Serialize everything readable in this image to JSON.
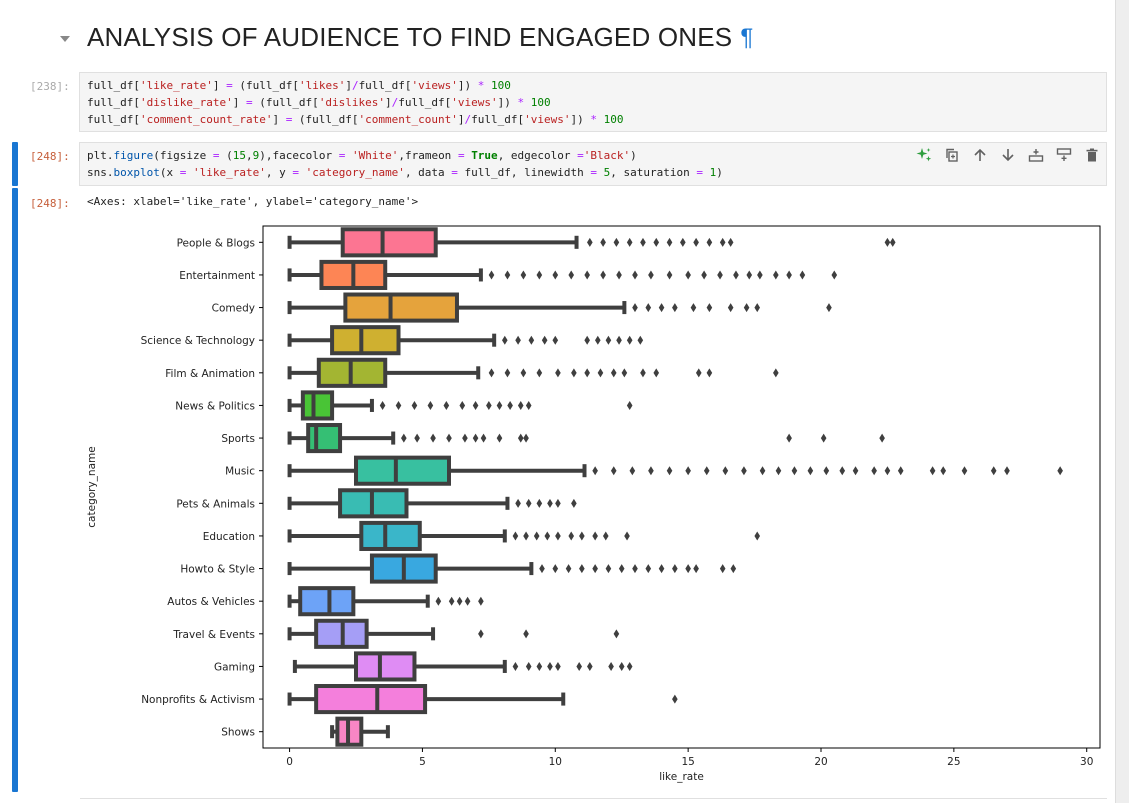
{
  "heading": {
    "title": "ANALYSIS OF AUDIENCE TO FIND ENGAGED ONES",
    "anchor": "¶"
  },
  "cells": [
    {
      "prompt": "[238]:",
      "lines": [
        [
          [
            "full_df[",
            "t"
          ],
          [
            "'like_rate'",
            "s"
          ],
          [
            "] ",
            "t"
          ],
          [
            "=",
            "o"
          ],
          [
            " (full_df[",
            "t"
          ],
          [
            "'likes'",
            "s"
          ],
          [
            "]",
            "t"
          ],
          [
            "/",
            "o"
          ],
          [
            "full_df[",
            "t"
          ],
          [
            "'views'",
            "s"
          ],
          [
            "]) ",
            "t"
          ],
          [
            "*",
            "o"
          ],
          [
            " ",
            "t"
          ],
          [
            "100",
            "n"
          ]
        ],
        [
          [
            "full_df[",
            "t"
          ],
          [
            "'dislike_rate'",
            "s"
          ],
          [
            "] ",
            "t"
          ],
          [
            "=",
            "o"
          ],
          [
            " (full_df[",
            "t"
          ],
          [
            "'dislikes'",
            "s"
          ],
          [
            "]",
            "t"
          ],
          [
            "/",
            "o"
          ],
          [
            "full_df[",
            "t"
          ],
          [
            "'views'",
            "s"
          ],
          [
            "]) ",
            "t"
          ],
          [
            "*",
            "o"
          ],
          [
            " ",
            "t"
          ],
          [
            "100",
            "n"
          ]
        ],
        [
          [
            "full_df[",
            "t"
          ],
          [
            "'comment_count_rate'",
            "s"
          ],
          [
            "] ",
            "t"
          ],
          [
            "=",
            "o"
          ],
          [
            " (full_df[",
            "t"
          ],
          [
            "'comment_count'",
            "s"
          ],
          [
            "]",
            "t"
          ],
          [
            "/",
            "o"
          ],
          [
            "full_df[",
            "t"
          ],
          [
            "'views'",
            "s"
          ],
          [
            "]) ",
            "t"
          ],
          [
            "*",
            "o"
          ],
          [
            " ",
            "t"
          ],
          [
            "100",
            "n"
          ]
        ]
      ]
    },
    {
      "prompt": "[248]:",
      "lines": [
        [
          [
            "plt.",
            "t"
          ],
          [
            "figure",
            "f"
          ],
          [
            "(figsize ",
            "t"
          ],
          [
            "=",
            "o"
          ],
          [
            " (",
            "t"
          ],
          [
            "15",
            "n"
          ],
          [
            ",",
            "t"
          ],
          [
            "9",
            "n"
          ],
          [
            "),facecolor ",
            "t"
          ],
          [
            "=",
            "o"
          ],
          [
            " ",
            "t"
          ],
          [
            "'White'",
            "s"
          ],
          [
            ",frameon ",
            "t"
          ],
          [
            "=",
            "o"
          ],
          [
            " ",
            "t"
          ],
          [
            "True",
            "k"
          ],
          [
            ", edgecolor ",
            "t"
          ],
          [
            "=",
            "o"
          ],
          [
            "'Black'",
            "s"
          ],
          [
            ")",
            "t"
          ]
        ],
        [
          [
            "sns.",
            "t"
          ],
          [
            "boxplot",
            "f"
          ],
          [
            "(x ",
            "t"
          ],
          [
            "=",
            "o"
          ],
          [
            " ",
            "t"
          ],
          [
            "'like_rate'",
            "s"
          ],
          [
            ", y ",
            "t"
          ],
          [
            "=",
            "o"
          ],
          [
            " ",
            "t"
          ],
          [
            "'category_name'",
            "s"
          ],
          [
            ", data ",
            "t"
          ],
          [
            "=",
            "o"
          ],
          [
            " full_df, linewidth ",
            "t"
          ],
          [
            "=",
            "o"
          ],
          [
            " ",
            "t"
          ],
          [
            "5",
            "n"
          ],
          [
            ", saturation ",
            "t"
          ],
          [
            "=",
            "o"
          ],
          [
            " ",
            "t"
          ],
          [
            "1",
            "n"
          ],
          [
            ")",
            "t"
          ]
        ]
      ]
    }
  ],
  "output": {
    "prompt": "[248]:",
    "text": "<Axes: xlabel='like_rate', ylabel='category_name'>"
  },
  "toolbar": [
    {
      "name": "sparkle-ai-icon",
      "color": "#2e9e3e"
    },
    {
      "name": "duplicate-icon",
      "color": "#616161"
    },
    {
      "name": "move-up-icon",
      "color": "#616161"
    },
    {
      "name": "move-down-icon",
      "color": "#616161"
    },
    {
      "name": "insert-above-icon",
      "color": "#616161"
    },
    {
      "name": "insert-below-icon",
      "color": "#616161"
    },
    {
      "name": "delete-icon",
      "color": "#616161"
    }
  ],
  "chart_data": {
    "type": "boxplot",
    "orientation": "horizontal",
    "xlabel": "like_rate",
    "ylabel": "category_name",
    "xlim": [
      -1,
      30.5
    ],
    "xticks": [
      0,
      5,
      10,
      15,
      20,
      25,
      30
    ],
    "box_edge_color": "#3f3f3f",
    "categories": [
      "People & Blogs",
      "Entertainment",
      "Comedy",
      "Science & Technology",
      "Film & Animation",
      "News & Politics",
      "Sports",
      "Music",
      "Pets & Animals",
      "Education",
      "Howto & Style",
      "Autos & Vehicles",
      "Travel & Events",
      "Gaming",
      "Nonprofits & Activism",
      "Shows"
    ],
    "series": [
      {
        "q1": 2.0,
        "median": 3.5,
        "q3": 5.5,
        "whisker_low": 0.0,
        "whisker_high": 10.8,
        "outliers": [
          11.3,
          11.8,
          12.3,
          12.8,
          13.3,
          13.8,
          14.3,
          14.8,
          15.3,
          15.8,
          16.3,
          16.6,
          22.5,
          22.7
        ],
        "color": "#fc7592"
      },
      {
        "q1": 1.2,
        "median": 2.4,
        "q3": 3.6,
        "whisker_low": 0.0,
        "whisker_high": 7.2,
        "outliers": [
          7.6,
          8.2,
          8.8,
          9.4,
          10.0,
          10.6,
          11.2,
          11.8,
          12.4,
          13.0,
          13.6,
          14.3,
          15.0,
          15.6,
          16.2,
          16.8,
          17.3,
          17.7,
          18.3,
          18.8,
          19.3,
          20.5
        ],
        "color": "#fd8555"
      },
      {
        "q1": 2.1,
        "median": 3.8,
        "q3": 6.3,
        "whisker_low": 0.0,
        "whisker_high": 12.6,
        "outliers": [
          13.0,
          13.5,
          14.0,
          14.5,
          15.2,
          15.8,
          16.6,
          17.2,
          17.6,
          20.3
        ],
        "color": "#e5a33c"
      },
      {
        "q1": 1.6,
        "median": 2.7,
        "q3": 4.1,
        "whisker_low": 0.0,
        "whisker_high": 7.7,
        "outliers": [
          8.1,
          8.6,
          9.1,
          9.6,
          10.0,
          11.2,
          11.6,
          12.0,
          12.4,
          12.8,
          13.2
        ],
        "color": "#cfb030"
      },
      {
        "q1": 1.1,
        "median": 2.3,
        "q3": 3.6,
        "whisker_low": 0.0,
        "whisker_high": 7.1,
        "outliers": [
          7.6,
          8.2,
          8.8,
          9.4,
          10.1,
          10.7,
          11.2,
          11.7,
          12.2,
          12.6,
          13.3,
          13.8,
          15.4,
          15.8,
          18.3
        ],
        "color": "#a3b532"
      },
      {
        "q1": 0.5,
        "median": 0.9,
        "q3": 1.6,
        "whisker_low": 0.0,
        "whisker_high": 3.1,
        "outliers": [
          3.5,
          4.1,
          4.7,
          5.3,
          5.9,
          6.5,
          7.0,
          7.5,
          7.9,
          8.3,
          8.7,
          9.0,
          12.8
        ],
        "color": "#49c436"
      },
      {
        "q1": 0.7,
        "median": 1.0,
        "q3": 1.9,
        "whisker_low": 0.0,
        "whisker_high": 3.9,
        "outliers": [
          4.3,
          4.8,
          5.4,
          6.0,
          6.6,
          7.0,
          7.3,
          7.9,
          8.7,
          8.9,
          18.8,
          20.1,
          22.3
        ],
        "color": "#35bf74"
      },
      {
        "q1": 2.5,
        "median": 4.0,
        "q3": 6.0,
        "whisker_low": 0.0,
        "whisker_high": 11.1,
        "outliers": [
          11.5,
          12.2,
          12.9,
          13.6,
          14.3,
          15.0,
          15.7,
          16.4,
          17.1,
          17.8,
          18.4,
          19.0,
          19.6,
          20.2,
          20.8,
          21.3,
          22.0,
          22.5,
          23.0,
          24.2,
          24.6,
          25.4,
          26.5,
          27.0,
          29.0
        ],
        "color": "#38c0a0"
      },
      {
        "q1": 1.9,
        "median": 3.1,
        "q3": 4.4,
        "whisker_low": 0.0,
        "whisker_high": 8.2,
        "outliers": [
          8.6,
          9.0,
          9.4,
          9.8,
          10.1,
          10.7
        ],
        "color": "#39bcb3"
      },
      {
        "q1": 2.7,
        "median": 3.6,
        "q3": 4.9,
        "whisker_low": 0.0,
        "whisker_high": 8.1,
        "outliers": [
          8.5,
          8.9,
          9.3,
          9.7,
          10.1,
          10.6,
          11.0,
          11.5,
          11.9,
          12.7,
          17.6
        ],
        "color": "#3ab6c9"
      },
      {
        "q1": 3.1,
        "median": 4.3,
        "q3": 5.5,
        "whisker_low": 0.0,
        "whisker_high": 9.1,
        "outliers": [
          9.5,
          10.0,
          10.5,
          11.0,
          11.5,
          12.0,
          12.5,
          13.0,
          13.5,
          14.0,
          14.5,
          15.0,
          15.3,
          16.3,
          16.7
        ],
        "color": "#39a8e0"
      },
      {
        "q1": 0.4,
        "median": 1.5,
        "q3": 2.4,
        "whisker_low": 0.0,
        "whisker_high": 5.2,
        "outliers": [
          5.6,
          6.1,
          6.4,
          6.7,
          7.2
        ],
        "color": "#6da3f7"
      },
      {
        "q1": 1.0,
        "median": 2.0,
        "q3": 2.9,
        "whisker_low": 0.0,
        "whisker_high": 5.4,
        "outliers": [
          7.2,
          8.9,
          12.3
        ],
        "color": "#a59ef6"
      },
      {
        "q1": 2.5,
        "median": 3.4,
        "q3": 4.7,
        "whisker_low": 0.2,
        "whisker_high": 8.1,
        "outliers": [
          8.5,
          9.0,
          9.4,
          9.8,
          10.1,
          10.9,
          11.3,
          12.1,
          12.5,
          12.8
        ],
        "color": "#df8cf4"
      },
      {
        "q1": 1.0,
        "median": 3.3,
        "q3": 5.1,
        "whisker_low": 0.0,
        "whisker_high": 10.3,
        "outliers": [
          14.5
        ],
        "color": "#f47fdc"
      },
      {
        "q1": 1.8,
        "median": 2.2,
        "q3": 2.7,
        "whisker_low": 1.6,
        "whisker_high": 3.7,
        "outliers": [],
        "color": "#f886c5"
      }
    ]
  }
}
